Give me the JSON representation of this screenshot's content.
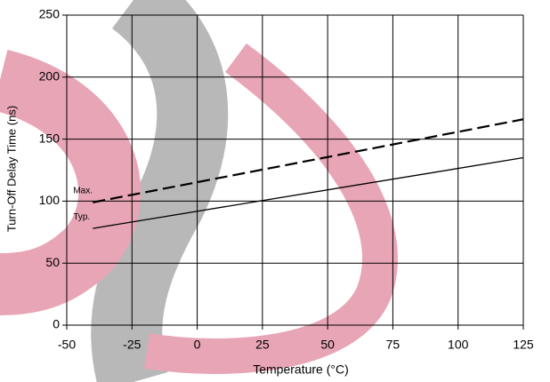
{
  "chart_data": {
    "type": "line",
    "x_label": "Temperature (°C)",
    "y_label": "Turn-Off Delay Time (ns)",
    "series": [
      {
        "name": "Max.",
        "color": "#000000",
        "dash": true,
        "x": [
          -40,
          125
        ],
        "values": [
          99,
          166
        ]
      },
      {
        "name": "Typ.",
        "color": "#000000",
        "dash": false,
        "x": [
          -40,
          125
        ],
        "values": [
          78,
          135
        ]
      }
    ],
    "xlim": [
      -50,
      125
    ],
    "xticks": [
      -50,
      -25,
      0,
      25,
      50,
      75,
      100,
      125
    ],
    "ylim": [
      0,
      250
    ],
    "yticks": [
      0,
      50,
      100,
      150,
      200,
      250
    ],
    "grid": true
  }
}
